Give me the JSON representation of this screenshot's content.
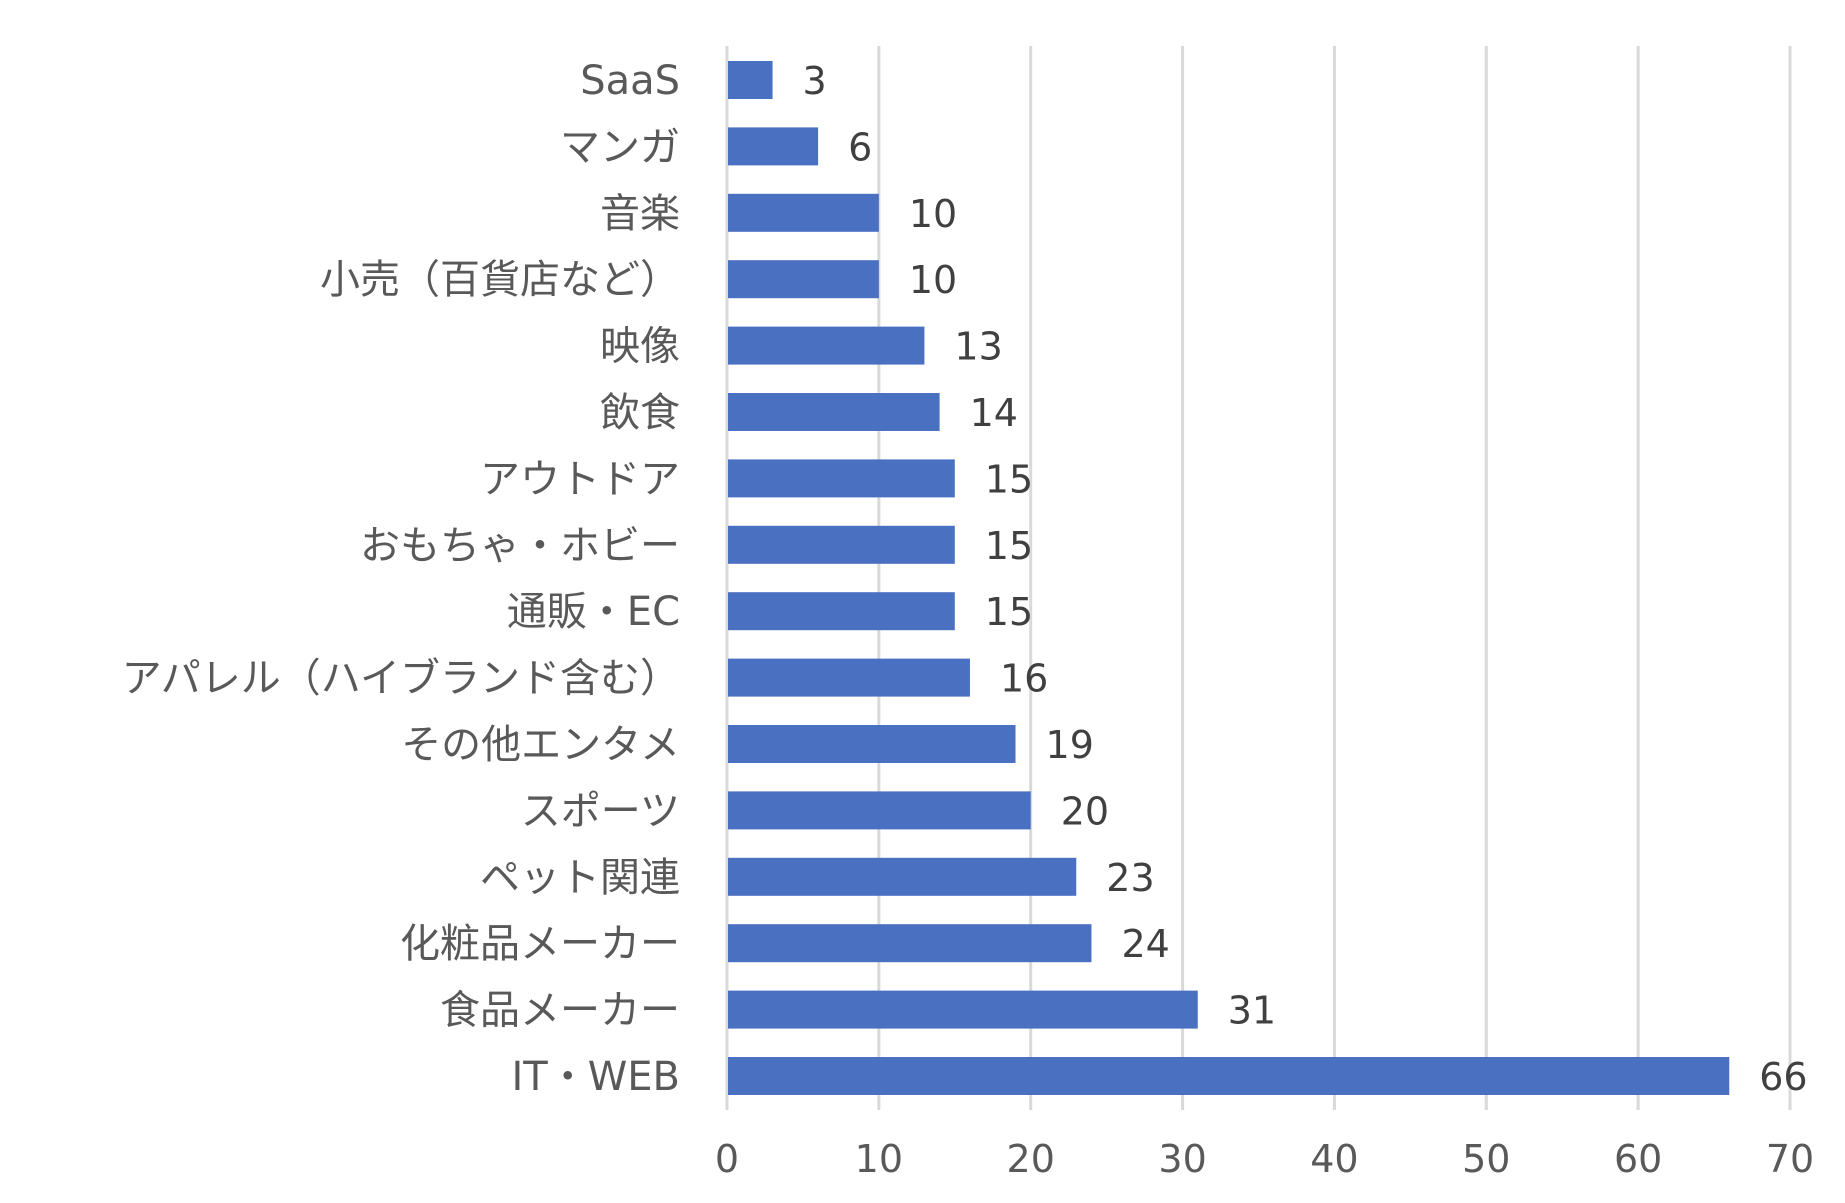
{
  "chart_data": {
    "type": "bar",
    "orientation": "horizontal",
    "categories": [
      "SaaS",
      "マンガ",
      "音楽",
      "小売（百貨店など）",
      "映像",
      "飲食",
      "アウトドア",
      "おもちゃ・ホビー",
      "通販・EC",
      "アパレル（ハイブランド含む）",
      "その他エンタメ",
      "スポーツ",
      "ペット関連",
      "化粧品メーカー",
      "食品メーカー",
      "IT・WEB"
    ],
    "values": [
      3,
      6,
      10,
      10,
      13,
      14,
      15,
      15,
      15,
      16,
      19,
      20,
      23,
      24,
      31,
      66
    ],
    "value_labels": [
      "3",
      "6",
      "10",
      "10",
      "13",
      "14",
      "15",
      "15",
      "15",
      "16",
      "19",
      "20",
      "23",
      "24",
      "31",
      "66"
    ],
    "xlim": [
      0,
      70
    ],
    "x_ticks": [
      0,
      10,
      20,
      30,
      40,
      50,
      60,
      70
    ],
    "x_tick_labels": [
      "0",
      "10",
      "20",
      "30",
      "40",
      "50",
      "60",
      "70"
    ],
    "title": "",
    "xlabel": "",
    "ylabel": "",
    "grid": "vertical",
    "legend": "none",
    "bar_color": "#4a70c1",
    "grid_color": "#d9d9d9"
  }
}
